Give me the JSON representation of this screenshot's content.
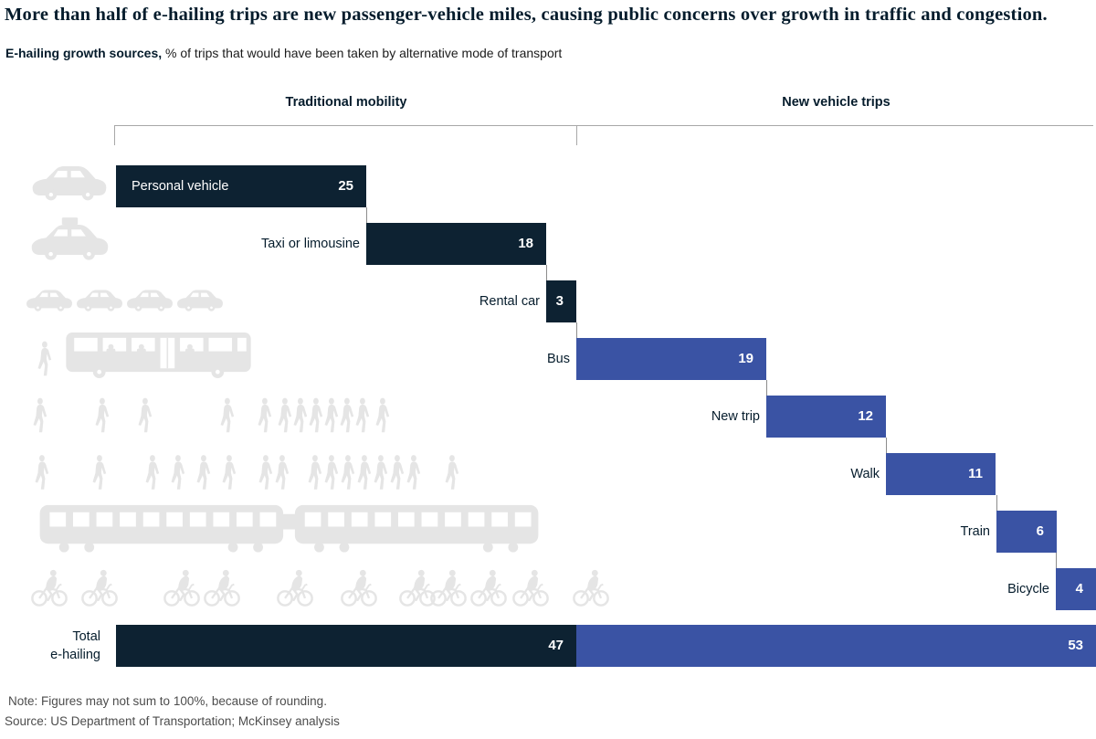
{
  "title": "More than half of e-hailing trips are new passenger-vehicle miles, causing public concerns over growth in traffic and congestion.",
  "subtitle": {
    "bold": "E-hailing growth sources,",
    "rest": " % of trips that would have been taken by alternative mode of transport"
  },
  "chart_data": {
    "type": "bar",
    "subtype": "waterfall",
    "unit_label": "% of trips",
    "groups": {
      "traditional": {
        "label": "Traditional mobility",
        "color": "#0D2232"
      },
      "new": {
        "label": "New vehicle trips",
        "color": "#3A53A4"
      }
    },
    "categories": [
      "Personal vehicle",
      "Taxi or limousine",
      "Rental car",
      "Bus",
      "New trip",
      "Walk",
      "Train",
      "Bicycle"
    ],
    "values": [
      25,
      18,
      3,
      19,
      12,
      11,
      6,
      4
    ],
    "rows": [
      {
        "category": "Personal vehicle",
        "value": 25,
        "group": "traditional",
        "pictogram": "car-icon",
        "label_inside": true
      },
      {
        "category": "Taxi or limousine",
        "value": 18,
        "group": "traditional",
        "pictogram": "taxi-icon"
      },
      {
        "category": "Rental car",
        "value": 3,
        "group": "traditional",
        "pictogram": "rental-cars-icon"
      },
      {
        "category": "Bus",
        "value": 19,
        "group": "new",
        "pictogram": "bus-icon"
      },
      {
        "category": "New trip",
        "value": 12,
        "group": "new",
        "pictogram": "pedestrians-icon"
      },
      {
        "category": "Walk",
        "value": 11,
        "group": "new",
        "pictogram": "pedestrians-icon"
      },
      {
        "category": "Train",
        "value": 6,
        "group": "new",
        "pictogram": "train-icon"
      },
      {
        "category": "Bicycle",
        "value": 4,
        "group": "new",
        "pictogram": "bicycles-icon"
      }
    ],
    "total": {
      "category": "Total e-hailing",
      "label_lines": [
        "Total",
        "e-hailing"
      ],
      "segments": [
        {
          "group": "traditional",
          "value": 47
        },
        {
          "group": "new",
          "value": 53
        }
      ]
    },
    "value_label_color": "#FFFFFF",
    "legend_position": "top-bracket",
    "grid": false
  },
  "note": "Note: Figures may not sum to 100%, because of rounding.",
  "source": "Source: US Department of Transportation; McKinsey analysis",
  "colors": {
    "dark_navy": "#0D2232",
    "blue": "#3A53A4",
    "pictogram_gray": "#E5E5E5",
    "bracket_gray": "#A8A8A8",
    "text_dark": "#051C2C",
    "footnote_gray": "#4D4D4D"
  }
}
